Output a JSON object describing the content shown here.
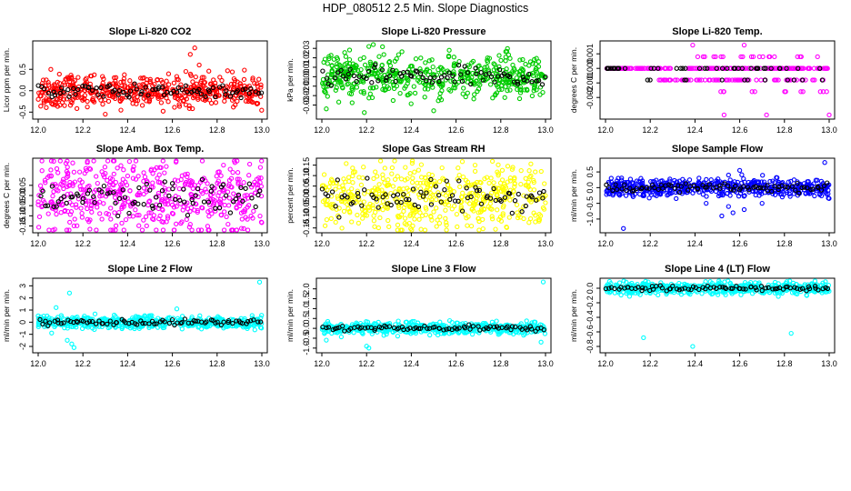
{
  "page_title": "HDP_080512  2.5 Min. Slope Diagnostics",
  "chart_data": [
    {
      "type": "scatter",
      "title": "Slope Li-820 CO2",
      "ylabel": "Licor ppm per min.",
      "color_main": "#ff0000",
      "xlim": [
        12.0,
        13.0
      ],
      "ylim": [
        -0.6,
        1.1
      ],
      "x_ticks": [
        "12.0",
        "12.2",
        "12.4",
        "12.6",
        "12.8",
        "13.0"
      ],
      "x_tick_values": [
        12.0,
        12.2,
        12.4,
        12.6,
        12.8,
        13.0
      ],
      "y_tick_values": [
        -0.5,
        0.0,
        0.5
      ],
      "y_ticks": [
        "-0.5",
        "0.0",
        "0.5"
      ],
      "spread": 0.18,
      "outliers": [
        [
          12.66,
          0.45
        ],
        [
          12.68,
          0.85
        ],
        [
          12.7,
          1.0
        ],
        [
          12.72,
          0.6
        ],
        [
          12.69,
          -0.42
        ],
        [
          12.3,
          -0.55
        ],
        [
          12.06,
          -0.3
        ],
        [
          12.22,
          -0.38
        ]
      ]
    },
    {
      "type": "scatter",
      "title": "Slope Li-820 Pressure",
      "ylabel": "kPa per min.",
      "color_main": "#00cc00",
      "xlim": [
        12.0,
        13.0
      ],
      "ylim": [
        -0.042,
        0.035
      ],
      "x_ticks": [
        "12.0",
        "12.2",
        "12.4",
        "12.6",
        "12.8",
        "13.0"
      ],
      "x_tick_values": [
        12.0,
        12.2,
        12.4,
        12.6,
        12.8,
        13.0
      ],
      "y_tick_values": [
        -0.03,
        -0.02,
        -0.01,
        0.0,
        0.01,
        0.02,
        0.03
      ],
      "y_ticks": [
        "-0.03",
        "-0.02",
        "-0.01",
        "0.00",
        "0.01",
        "0.02",
        "0.03"
      ],
      "spread": 0.011,
      "outliers": [
        [
          12.21,
          0.032
        ],
        [
          12.23,
          0.034
        ],
        [
          12.19,
          -0.038
        ],
        [
          12.5,
          -0.036
        ],
        [
          12.02,
          -0.034
        ]
      ]
    },
    {
      "type": "scatter",
      "title": "Slope Li-820 Temp.",
      "ylabel": "degrees C per min.",
      "color_main": "#ff00ff",
      "xlim": [
        12.0,
        13.0
      ],
      "ylim": [
        -0.0033,
        0.0017
      ],
      "x_ticks": [
        "12.0",
        "12.2",
        "12.4",
        "12.6",
        "12.8",
        "13.0"
      ],
      "x_tick_values": [
        12.0,
        12.2,
        12.4,
        12.6,
        12.8,
        13.0
      ],
      "y_tick_values": [
        -0.002,
        -0.001,
        0.0,
        0.001
      ],
      "y_ticks": [
        "-0.002",
        "-0.001",
        "0.000",
        "0.001"
      ],
      "levels": [
        0.0016,
        0.0008,
        0.0,
        -0.0008,
        -0.0016,
        -0.0024,
        -0.0032
      ],
      "outliers": [
        [
          12.39,
          0.0016
        ],
        [
          12.62,
          0.0016
        ],
        [
          12.53,
          -0.0032
        ],
        [
          12.72,
          -0.0032
        ],
        [
          13.0,
          -0.0032
        ]
      ]
    },
    {
      "type": "scatter",
      "title": "Slope Amb. Box Temp.",
      "ylabel": "degrees C per min.",
      "color_main": "#ff00ff",
      "xlim": [
        12.0,
        13.0
      ],
      "ylim": [
        -0.17,
        0.17
      ],
      "x_ticks": [
        "12.0",
        "12.2",
        "12.4",
        "12.6",
        "12.8",
        "13.0"
      ],
      "x_tick_values": [
        12.0,
        12.2,
        12.4,
        12.6,
        12.8,
        13.0
      ],
      "y_tick_values": [
        -0.15,
        -0.1,
        -0.05,
        0.0,
        0.05
      ],
      "y_ticks": [
        "-0.15",
        "-0.10",
        "-0.05",
        "0.00",
        "0.05"
      ],
      "spread": 0.09,
      "outliers": []
    },
    {
      "type": "scatter",
      "title": "Slope Gas Stream RH",
      "ylabel": "percent per min.",
      "color_main": "#ffff00",
      "xlim": [
        12.0,
        13.0
      ],
      "ylim": [
        -0.16,
        0.17
      ],
      "x_ticks": [
        "12.0",
        "12.2",
        "12.4",
        "12.6",
        "12.8",
        "13.0"
      ],
      "x_tick_values": [
        12.0,
        12.2,
        12.4,
        12.6,
        12.8,
        13.0
      ],
      "y_tick_values": [
        -0.15,
        -0.1,
        -0.05,
        0.0,
        0.05,
        0.1,
        0.15
      ],
      "y_ticks": [
        "-0.15",
        "-0.10",
        "-0.05",
        "0.00",
        "0.05",
        "0.10",
        "0.15"
      ],
      "spread": 0.08,
      "outliers": []
    },
    {
      "type": "scatter",
      "title": "Slope Sample Flow",
      "ylabel": "ml/min per min.",
      "color_main": "#0000ff",
      "xlim": [
        12.0,
        13.0
      ],
      "ylim": [
        -1.35,
        0.85
      ],
      "x_ticks": [
        "12.0",
        "12.2",
        "12.4",
        "12.6",
        "12.8",
        "13.0"
      ],
      "x_tick_values": [
        12.0,
        12.2,
        12.4,
        12.6,
        12.8,
        13.0
      ],
      "y_tick_values": [
        -1.0,
        -0.5,
        0.0,
        0.5
      ],
      "y_ticks": [
        "-1.0",
        "-0.5",
        "0.0",
        "0.5"
      ],
      "spread": 0.14,
      "outliers": [
        [
          12.55,
          -0.6
        ],
        [
          12.57,
          -0.8
        ],
        [
          12.52,
          -0.9
        ],
        [
          12.62,
          -0.7
        ],
        [
          12.7,
          -0.5
        ],
        [
          12.08,
          -1.3
        ],
        [
          12.6,
          0.55
        ],
        [
          12.98,
          0.8
        ],
        [
          12.55,
          0.4
        ],
        [
          12.45,
          -0.5
        ]
      ]
    },
    {
      "type": "scatter",
      "title": "Slope Line 2 Flow",
      "ylabel": "ml/min per min.",
      "color_main": "#00ffff",
      "xlim": [
        12.0,
        13.0
      ],
      "ylim": [
        -2.3,
        3.4
      ],
      "x_ticks": [
        "12.0",
        "12.2",
        "12.4",
        "12.6",
        "12.8",
        "13.0"
      ],
      "x_tick_values": [
        12.0,
        12.2,
        12.4,
        12.6,
        12.8,
        13.0
      ],
      "y_tick_values": [
        -2,
        -1,
        0,
        1,
        2,
        3
      ],
      "y_ticks": [
        "-2",
        "-1",
        "0",
        "1",
        "2",
        "3"
      ],
      "spread": 0.25,
      "outliers": [
        [
          12.14,
          2.4
        ],
        [
          12.15,
          -1.8
        ],
        [
          12.13,
          -1.5
        ],
        [
          12.16,
          -2.1
        ],
        [
          12.08,
          1.2
        ],
        [
          12.99,
          3.3
        ],
        [
          12.06,
          -0.9
        ],
        [
          12.62,
          1.1
        ]
      ]
    },
    {
      "type": "scatter",
      "title": "Slope Line 3 Flow",
      "ylabel": "ml/min per min.",
      "color_main": "#00ffff",
      "xlim": [
        12.0,
        13.0
      ],
      "ylim": [
        -1.1,
        2.4
      ],
      "x_ticks": [
        "12.0",
        "12.2",
        "12.4",
        "12.6",
        "12.8",
        "13.0"
      ],
      "x_tick_values": [
        12.0,
        12.2,
        12.4,
        12.6,
        12.8,
        13.0
      ],
      "y_tick_values": [
        -1.0,
        -0.5,
        0.0,
        0.5,
        1.0,
        1.5,
        2.0
      ],
      "y_ticks": [
        "-1.0",
        "-0.5",
        "0.0",
        "0.5",
        "1.0",
        "1.5",
        "2.0"
      ],
      "spread": 0.15,
      "outliers": [
        [
          12.2,
          -0.9
        ],
        [
          12.21,
          -1.0
        ],
        [
          12.99,
          2.35
        ],
        [
          12.98,
          -0.7
        ],
        [
          12.02,
          -0.6
        ]
      ]
    },
    {
      "type": "scatter",
      "title": "Slope Line 4 (LT) Flow",
      "ylabel": "ml/min per min.",
      "color_main": "#00ffff",
      "xlim": [
        12.0,
        13.0
      ],
      "ylim": [
        -0.85,
        0.1
      ],
      "x_ticks": [
        "12.0",
        "12.2",
        "12.4",
        "12.6",
        "12.8",
        "13.0"
      ],
      "x_tick_values": [
        12.0,
        12.2,
        12.4,
        12.6,
        12.8,
        13.0
      ],
      "y_tick_values": [
        -0.8,
        -0.6,
        -0.4,
        -0.2,
        0.0
      ],
      "y_ticks": [
        "-0.8",
        "-0.6",
        "-0.4",
        "-0.2",
        "0.0"
      ],
      "spread": 0.04,
      "outliers": [
        [
          12.17,
          -0.68
        ],
        [
          12.39,
          -0.8
        ],
        [
          12.83,
          -0.62
        ],
        [
          12.82,
          0.05
        ],
        [
          12.9,
          -0.1
        ]
      ]
    }
  ]
}
